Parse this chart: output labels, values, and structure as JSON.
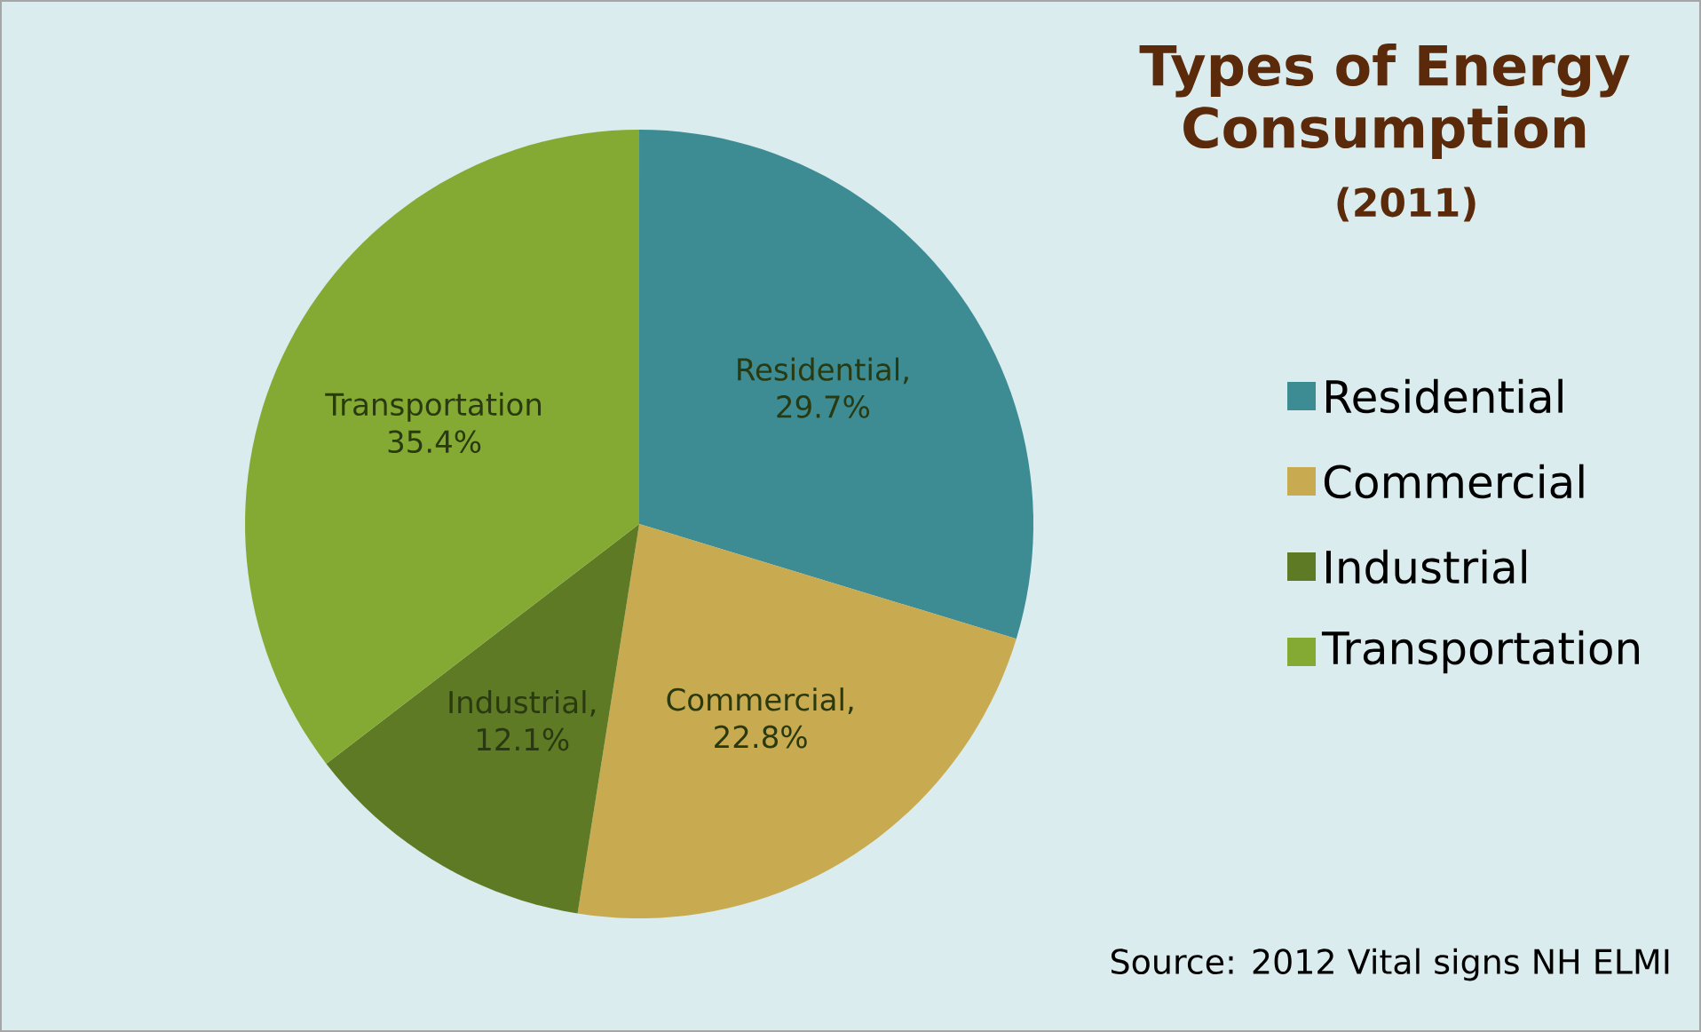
{
  "chart_data": {
    "type": "pie",
    "title": "Types of Energy Consumption",
    "subtitle": "(2011)",
    "categories": [
      "Residential",
      "Commercial",
      "Industrial",
      "Transportation"
    ],
    "values": [
      29.7,
      22.8,
      12.1,
      35.4
    ],
    "colors": [
      "#3d8c94",
      "#c8aa50",
      "#5e7a24",
      "#84aa34"
    ],
    "value_labels": [
      "Residential, 29.7%",
      "Commercial, 22.8%",
      "Industrial, 12.1%",
      "Transportation 35.4%"
    ],
    "legend": "right",
    "annotations": [
      "Source:  2012 Vital signs NH ELMI"
    ]
  }
}
